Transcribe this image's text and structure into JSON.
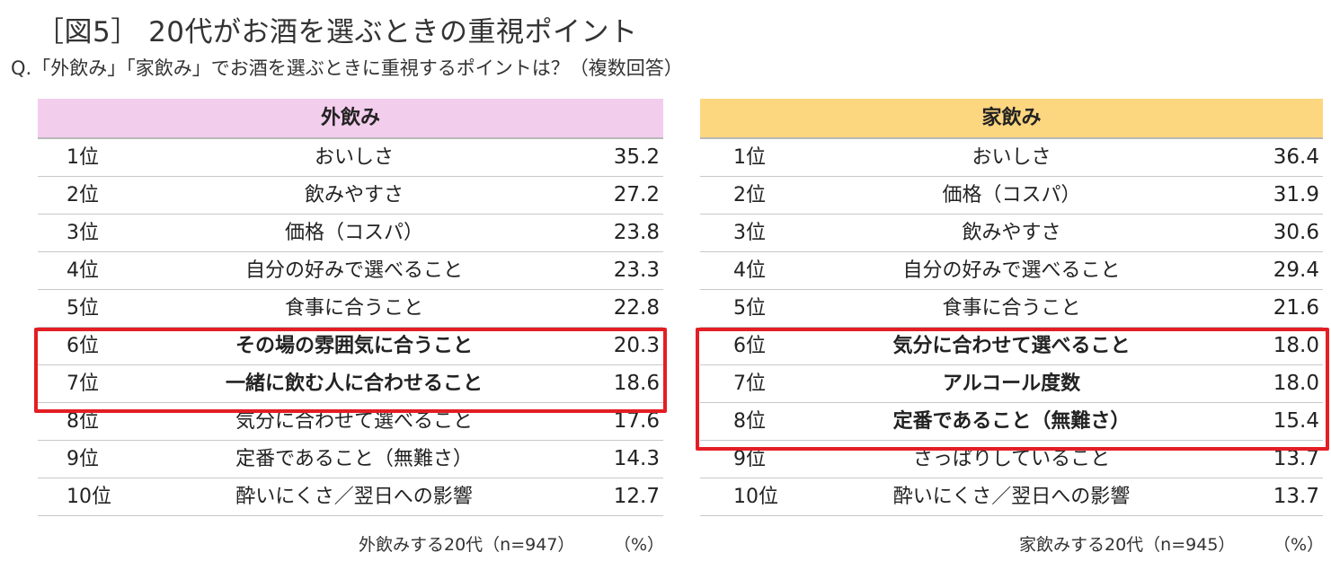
{
  "title": "［図5］ 20代がお酒を選ぶときの重視ポイント",
  "subtitle": "Q.「外飲み」「家飲み」でお酒を選ぶときに重視するポイントは？（複数回答）",
  "chart_data": [
    {
      "type": "table",
      "title": "外飲み",
      "header_color": "#f3cdec",
      "highlight_color": "#e31e24",
      "highlight_ranks": [
        "6位",
        "7位"
      ],
      "rows": [
        {
          "rank": "1位",
          "item": "おいしさ",
          "value": "35.2"
        },
        {
          "rank": "2位",
          "item": "飲みやすさ",
          "value": "27.2"
        },
        {
          "rank": "3位",
          "item": "価格（コスパ）",
          "value": "23.8"
        },
        {
          "rank": "4位",
          "item": "自分の好みで選べること",
          "value": "23.3"
        },
        {
          "rank": "5位",
          "item": "食事に合うこと",
          "value": "22.8"
        },
        {
          "rank": "6位",
          "item": "その場の雰囲気に合うこと",
          "value": "20.3"
        },
        {
          "rank": "7位",
          "item": "一緒に飲む人に合わせること",
          "value": "18.6"
        },
        {
          "rank": "8位",
          "item": "気分に合わせて選べること",
          "value": "17.6"
        },
        {
          "rank": "9位",
          "item": "定番であること（無難さ）",
          "value": "14.3"
        },
        {
          "rank": "10位",
          "item": "酔いにくさ／翌日への影響",
          "value": "12.7"
        }
      ],
      "note": "外飲みする20代（n=947）",
      "unit": "（%）"
    },
    {
      "type": "table",
      "title": "家飲み",
      "header_color": "#fdd680",
      "highlight_color": "#e31e24",
      "highlight_ranks": [
        "6位",
        "7位",
        "8位"
      ],
      "rows": [
        {
          "rank": "1位",
          "item": "おいしさ",
          "value": "36.4"
        },
        {
          "rank": "2位",
          "item": "価格（コスパ）",
          "value": "31.9"
        },
        {
          "rank": "3位",
          "item": "飲みやすさ",
          "value": "30.6"
        },
        {
          "rank": "4位",
          "item": "自分の好みで選べること",
          "value": "29.4"
        },
        {
          "rank": "5位",
          "item": "食事に合うこと",
          "value": "21.6"
        },
        {
          "rank": "6位",
          "item": "気分に合わせて選べること",
          "value": "18.0"
        },
        {
          "rank": "7位",
          "item": "アルコール度数",
          "value": "18.0"
        },
        {
          "rank": "8位",
          "item": "定番であること（無難さ）",
          "value": "15.4"
        },
        {
          "rank": "9位",
          "item": "さっぱりしていること",
          "value": "13.7"
        },
        {
          "rank": "10位",
          "item": "酔いにくさ／翌日への影響",
          "value": "13.7"
        }
      ],
      "note": "家飲みする20代（n=945）",
      "unit": "（%）"
    }
  ]
}
